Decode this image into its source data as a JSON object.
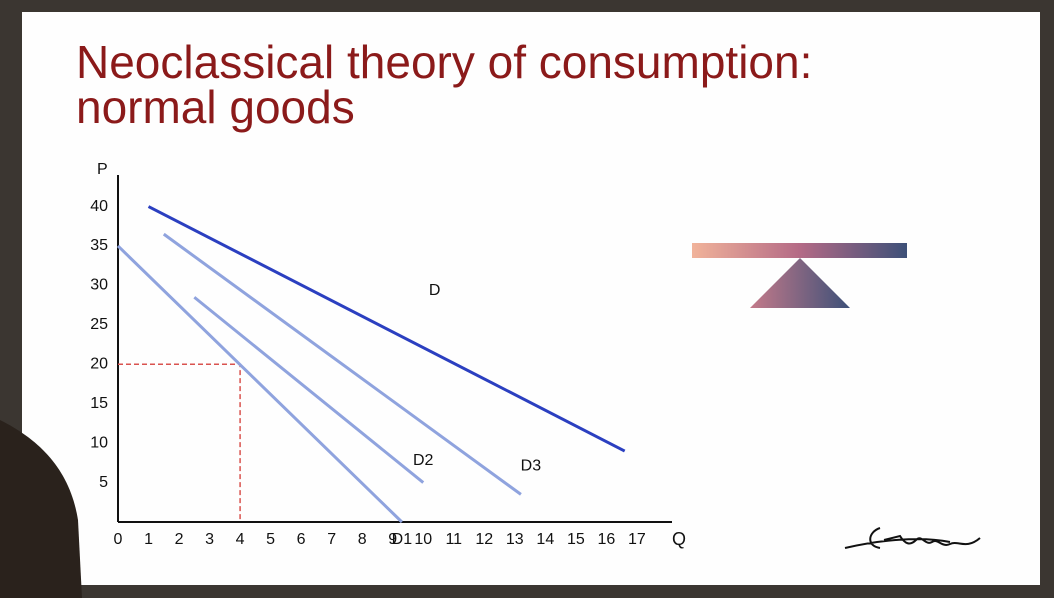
{
  "chart_data": {
    "type": "line",
    "title": [
      "Neoclassical theory of consumption:",
      "normal goods"
    ],
    "x_label": "Q",
    "y_label": "P",
    "xlim": [
      0,
      18.15
    ],
    "ylim": [
      0,
      44
    ],
    "xticks": [
      0,
      1,
      2,
      3,
      4,
      5,
      6,
      7,
      8,
      9,
      10,
      11,
      12,
      13,
      14,
      15,
      16,
      17
    ],
    "yticks": [
      5,
      10,
      15,
      20,
      25,
      30,
      35,
      40
    ],
    "series": [
      {
        "name": "D",
        "color": "#2b3fc0",
        "x": [
          1,
          16.6
        ],
        "values": [
          40,
          9
        ]
      },
      {
        "name": "D1",
        "color": "#8fa3de",
        "x": [
          0,
          9.3
        ],
        "values": [
          35,
          0
        ]
      },
      {
        "name": "D2",
        "color": "#8fa3de",
        "x": [
          2.5,
          10
        ],
        "values": [
          28.5,
          5
        ]
      },
      {
        "name": "D3",
        "color": "#8fa3de",
        "x": [
          1.5,
          13.2
        ],
        "values": [
          36.5,
          3.5
        ]
      }
    ],
    "reference_point": {
      "x": 4,
      "y": 20,
      "color": "#d9534f"
    }
  }
}
